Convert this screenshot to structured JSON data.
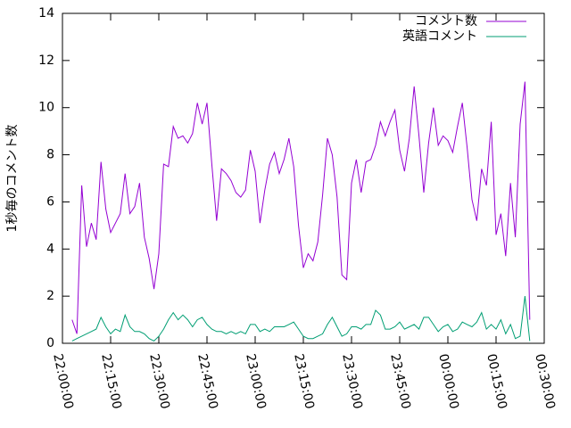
{
  "chart_data": {
    "type": "line",
    "y_label": "1秒毎のコメント数",
    "x": [
      "22:03:00",
      "22:04:30",
      "22:06:00",
      "22:07:30",
      "22:09:00",
      "22:10:30",
      "22:12:00",
      "22:13:30",
      "22:15:00",
      "22:16:30",
      "22:18:00",
      "22:19:30",
      "22:21:00",
      "22:22:30",
      "22:24:00",
      "22:25:30",
      "22:27:00",
      "22:28:30",
      "22:30:00",
      "22:31:30",
      "22:33:00",
      "22:34:30",
      "22:36:00",
      "22:37:30",
      "22:39:00",
      "22:40:30",
      "22:42:00",
      "22:43:30",
      "22:45:00",
      "22:46:30",
      "22:48:00",
      "22:49:30",
      "22:51:00",
      "22:52:30",
      "22:54:00",
      "22:55:30",
      "22:57:00",
      "22:58:30",
      "23:00:00",
      "23:01:30",
      "23:03:00",
      "23:04:30",
      "23:06:00",
      "23:07:30",
      "23:09:00",
      "23:10:30",
      "23:12:00",
      "23:13:30",
      "23:15:00",
      "23:16:30",
      "23:18:00",
      "23:19:30",
      "23:21:00",
      "23:22:30",
      "23:24:00",
      "23:25:30",
      "23:27:00",
      "23:28:30",
      "23:30:00",
      "23:31:30",
      "23:33:00",
      "23:34:30",
      "23:36:00",
      "23:37:30",
      "23:39:00",
      "23:40:30",
      "23:42:00",
      "23:43:30",
      "23:45:00",
      "23:46:30",
      "23:48:00",
      "23:49:30",
      "23:51:00",
      "23:52:30",
      "23:54:00",
      "23:55:30",
      "23:57:00",
      "23:58:30",
      "00:00:00",
      "00:01:30",
      "00:03:00",
      "00:04:30",
      "00:06:00",
      "00:07:30",
      "00:09:00",
      "00:10:30",
      "00:12:00",
      "00:13:30",
      "00:15:00",
      "00:16:30",
      "00:18:00",
      "00:19:30",
      "00:21:00",
      "00:22:30",
      "00:24:00",
      "00:25:30"
    ],
    "series": [
      {
        "name": "コメント数",
        "color": "#9400d3",
        "values": [
          1.0,
          0.4,
          6.7,
          4.1,
          5.1,
          4.4,
          7.7,
          5.7,
          4.7,
          5.1,
          5.5,
          7.2,
          5.5,
          5.8,
          6.8,
          4.5,
          3.6,
          2.3,
          3.8,
          7.6,
          7.5,
          9.2,
          8.7,
          8.8,
          8.5,
          8.9,
          10.2,
          9.3,
          10.2,
          7.6,
          5.2,
          7.4,
          7.2,
          6.9,
          6.4,
          6.2,
          6.5,
          8.2,
          7.3,
          5.1,
          6.5,
          7.6,
          8.1,
          7.2,
          7.8,
          8.7,
          7.5,
          5.0,
          3.2,
          3.8,
          3.5,
          4.3,
          6.3,
          8.7,
          8.0,
          6.2,
          2.9,
          2.7,
          6.8,
          7.8,
          6.4,
          7.7,
          7.8,
          8.4,
          9.4,
          8.8,
          9.4,
          9.9,
          8.2,
          7.3,
          8.7,
          10.9,
          8.8,
          6.4,
          8.5,
          10.0,
          8.4,
          8.8,
          8.6,
          8.1,
          9.2,
          10.2,
          8.3,
          6.1,
          5.2,
          7.4,
          6.7,
          9.4,
          4.6,
          5.5,
          3.7,
          6.8,
          4.5,
          9.3,
          11.1,
          1.0
        ]
      },
      {
        "name": "英語コメント",
        "color": "#009e73",
        "values": [
          0.1,
          0.2,
          0.3,
          0.4,
          0.5,
          0.6,
          1.1,
          0.7,
          0.4,
          0.6,
          0.5,
          1.2,
          0.7,
          0.5,
          0.5,
          0.4,
          0.2,
          0.1,
          0.3,
          0.6,
          1.0,
          1.3,
          1.0,
          1.2,
          1.0,
          0.7,
          1.0,
          1.1,
          0.8,
          0.6,
          0.5,
          0.5,
          0.4,
          0.5,
          0.4,
          0.5,
          0.4,
          0.8,
          0.8,
          0.5,
          0.6,
          0.5,
          0.7,
          0.7,
          0.7,
          0.8,
          0.9,
          0.6,
          0.3,
          0.2,
          0.2,
          0.3,
          0.4,
          0.8,
          1.1,
          0.7,
          0.3,
          0.4,
          0.7,
          0.7,
          0.6,
          0.8,
          0.8,
          1.4,
          1.2,
          0.6,
          0.6,
          0.7,
          0.9,
          0.6,
          0.7,
          0.8,
          0.6,
          1.1,
          1.1,
          0.8,
          0.5,
          0.7,
          0.8,
          0.5,
          0.6,
          0.9,
          0.8,
          0.7,
          0.9,
          1.3,
          0.6,
          0.8,
          0.6,
          1.0,
          0.4,
          0.8,
          0.2,
          0.3,
          2.0,
          0.1
        ]
      }
    ],
    "xlim": [
      "22:00:00",
      "00:30:00"
    ],
    "xticks": [
      "22:00:00",
      "22:15:00",
      "22:30:00",
      "22:45:00",
      "23:00:00",
      "23:15:00",
      "23:30:00",
      "23:45:00",
      "00:00:00",
      "00:15:00",
      "00:30:00"
    ],
    "ylim": [
      0,
      14
    ],
    "yticks": [
      0,
      2,
      4,
      6,
      8,
      10,
      12,
      14
    ],
    "legend": "top-right"
  }
}
